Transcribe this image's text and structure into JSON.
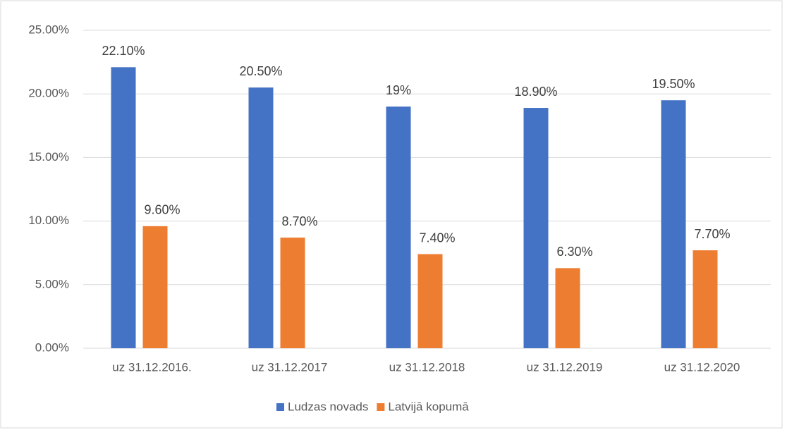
{
  "chart_data": {
    "type": "bar",
    "categories": [
      "uz 31.12.2016.",
      "uz 31.12.2017",
      "uz 31.12.2018",
      "uz 31.12.2019",
      "uz 31.12.2020"
    ],
    "series": [
      {
        "name": "Ludzas novads",
        "color": "#4472c4",
        "values": [
          22.1,
          20.5,
          19,
          18.9,
          19.5
        ],
        "value_labels": [
          "22.10%",
          "20.50%",
          "19%",
          "18.90%",
          "19.50%"
        ]
      },
      {
        "name": "Latvijā kopumā",
        "color": "#ed7d31",
        "values": [
          9.6,
          8.7,
          7.4,
          6.3,
          7.7
        ],
        "value_labels": [
          "9.60%",
          "8.70%",
          "7.40%",
          "6.30%",
          "7.70%"
        ]
      }
    ],
    "ylim": [
      0,
      25
    ],
    "yticks": [
      {
        "value": 0,
        "label": "0.00%"
      },
      {
        "value": 5,
        "label": "5.00%"
      },
      {
        "value": 10,
        "label": "10.00%"
      },
      {
        "value": 15,
        "label": "15.00%"
      },
      {
        "value": 20,
        "label": "20.00%"
      },
      {
        "value": 25,
        "label": "25.00%"
      }
    ],
    "grid": true,
    "legend": "bottom"
  }
}
